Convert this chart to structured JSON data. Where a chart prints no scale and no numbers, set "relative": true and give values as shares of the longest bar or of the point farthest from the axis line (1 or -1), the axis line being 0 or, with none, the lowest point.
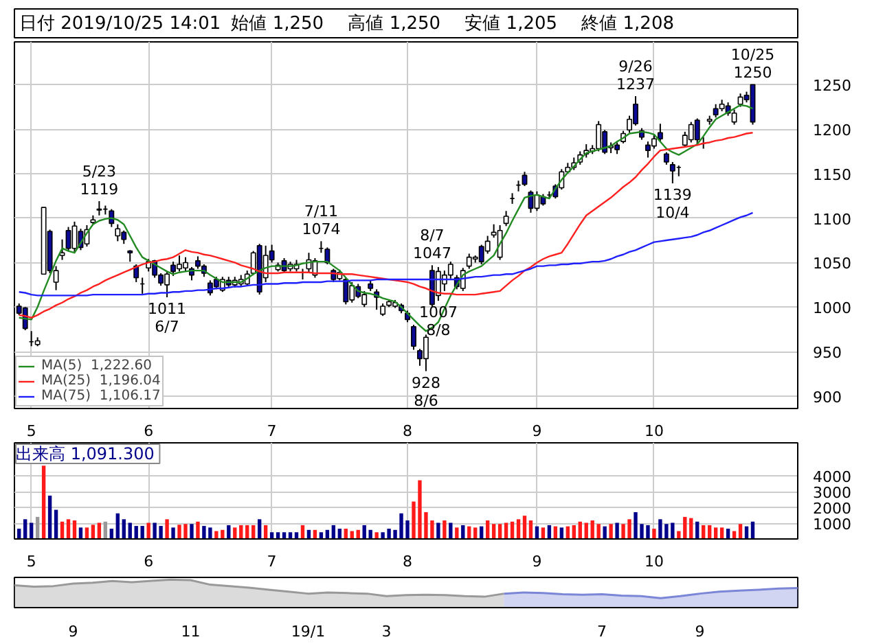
{
  "chart_data": [
    {
      "type": "candlestick",
      "annotations": [
        "日付 2019/10/25 14:01",
        "始値 1,250",
        "高値 1,250",
        "安値 1,205",
        "終値 1,208",
        {
          "text": "5/23\n1119",
          "y": 1119
        },
        {
          "text": "1011\n6/7",
          "y": 1011
        },
        {
          "text": "7/11\n1074",
          "y": 1074
        },
        {
          "text": "8/7\n1047",
          "y": 1047
        },
        {
          "text": "1007\n8/8",
          "y": 1007
        },
        {
          "text": "928\n8/6",
          "y": 928
        },
        {
          "text": "9/26\n1237",
          "y": 1237
        },
        {
          "text": "1139\n10/4",
          "y": 1139
        },
        {
          "text": "10/25\n1250",
          "y": 1250
        }
      ],
      "categories": [
        null,
        null,
        "5",
        null,
        null,
        null,
        null,
        null,
        null,
        null,
        null,
        null,
        null,
        null,
        null,
        null,
        null,
        null,
        null,
        null,
        null,
        "6",
        null,
        null,
        null,
        null,
        null,
        null,
        null,
        null,
        null,
        null,
        null,
        null,
        null,
        null,
        null,
        null,
        null,
        null,
        null,
        "7",
        null,
        null,
        null,
        null,
        null,
        null,
        null,
        null,
        null,
        null,
        null,
        null,
        null,
        null,
        null,
        null,
        null,
        null,
        null,
        null,
        null,
        "8",
        null,
        null,
        null,
        null,
        null,
        null,
        null,
        null,
        null,
        null,
        null,
        null,
        null,
        null,
        null,
        null,
        null,
        null,
        null,
        null,
        "9",
        null,
        null,
        null,
        null,
        null,
        null,
        null,
        null,
        null,
        null,
        null,
        null,
        null,
        null,
        null,
        null,
        null,
        null,
        "10",
        null,
        null,
        null,
        null,
        null,
        null,
        null,
        null,
        null,
        null,
        null,
        null,
        null,
        null,
        null,
        null
      ],
      "ohlc": [
        [
          1001,
          1004,
          991,
          993
        ],
        [
          999,
          1000,
          974,
          976
        ],
        [
          961,
          973,
          956,
          961
        ],
        [
          958,
          966,
          956,
          962
        ],
        [
          1037,
          1112,
          1037,
          1112
        ],
        [
          1085,
          1087,
          1038,
          1041
        ],
        [
          1028,
          1046,
          1019,
          1041
        ],
        [
          1058,
          1076,
          1053,
          1061
        ],
        [
          1086,
          1090,
          1063,
          1066
        ],
        [
          1066,
          1096,
          1061,
          1091
        ],
        [
          1085,
          1088,
          1064,
          1067
        ],
        [
          1071,
          1092,
          1068,
          1087
        ],
        [
          1095,
          1103,
          1093,
          1098
        ],
        [
          1109,
          1119,
          1103,
          1110
        ],
        [
          1110,
          1114,
          1104,
          1110
        ],
        [
          1108,
          1110,
          1090,
          1094
        ],
        [
          1080,
          1093,
          1074,
          1088
        ],
        [
          1084,
          1086,
          1071,
          1076
        ],
        [
          1063,
          1064,
          1051,
          1061
        ],
        [
          1046,
          1048,
          1028,
          1033
        ],
        [
          1026,
          1033,
          1015,
          1026
        ],
        [
          1044,
          1054,
          1040,
          1051
        ],
        [
          1052,
          1053,
          1033,
          1036
        ],
        [
          1036,
          1038,
          1024,
          1027
        ],
        [
          1025,
          1040,
          1011,
          1037
        ],
        [
          1047,
          1051,
          1035,
          1040
        ],
        [
          1043,
          1058,
          1040,
          1048
        ],
        [
          1044,
          1056,
          1040,
          1050
        ],
        [
          1043,
          1045,
          1030,
          1036
        ],
        [
          1052,
          1057,
          1043,
          1046
        ],
        [
          1046,
          1048,
          1034,
          1038
        ],
        [
          1027,
          1030,
          1013,
          1016
        ],
        [
          1031,
          1034,
          1020,
          1023
        ],
        [
          1019,
          1034,
          1017,
          1031
        ],
        [
          1030,
          1034,
          1022,
          1025
        ],
        [
          1025,
          1034,
          1022,
          1030
        ],
        [
          1026,
          1036,
          1023,
          1031
        ],
        [
          1026,
          1041,
          1024,
          1037
        ],
        [
          1038,
          1063,
          1036,
          1061
        ],
        [
          1069,
          1071,
          1014,
          1017
        ],
        [
          1033,
          1069,
          1028,
          1058
        ],
        [
          1063,
          1070,
          1050,
          1053
        ],
        [
          1042,
          1050,
          1040,
          1047
        ],
        [
          1052,
          1055,
          1038,
          1041
        ],
        [
          1043,
          1051,
          1040,
          1048
        ],
        [
          1043,
          1053,
          1040,
          1048
        ],
        [
          1039,
          1043,
          1031,
          1039
        ],
        [
          1043,
          1061,
          1039,
          1053
        ],
        [
          1036,
          1055,
          1033,
          1052
        ],
        [
          1066,
          1074,
          1061,
          1066
        ],
        [
          1065,
          1067,
          1048,
          1050
        ],
        [
          1041,
          1043,
          1028,
          1031
        ],
        [
          1032,
          1042,
          1030,
          1039
        ],
        [
          1031,
          1033,
          1003,
          1006
        ],
        [
          1008,
          1028,
          1005,
          1024
        ],
        [
          1023,
          1026,
          1010,
          1012
        ],
        [
          1003,
          1018,
          1000,
          1014
        ],
        [
          1026,
          1030,
          1018,
          1021
        ],
        [
          1017,
          1020,
          997,
          1011
        ],
        [
          992,
          1004,
          990,
          1001
        ],
        [
          1002,
          1008,
          1000,
          1006
        ],
        [
          1001,
          1008,
          999,
          1005
        ],
        [
          1002,
          1004,
          993,
          996
        ],
        [
          993,
          996,
          983,
          986
        ],
        [
          978,
          980,
          952,
          956
        ],
        [
          951,
          953,
          934,
          942
        ],
        [
          942,
          969,
          928,
          966
        ],
        [
          1041,
          1047,
          1000,
          1003
        ],
        [
          1013,
          1045,
          1007,
          1040
        ],
        [
          1026,
          1041,
          1018,
          1036
        ],
        [
          1036,
          1051,
          1032,
          1048
        ],
        [
          1033,
          1036,
          1020,
          1023
        ],
        [
          1021,
          1044,
          1018,
          1041
        ],
        [
          1046,
          1060,
          1043,
          1056
        ],
        [
          1054,
          1058,
          1050,
          1056
        ],
        [
          1068,
          1070,
          1048,
          1051
        ],
        [
          1063,
          1080,
          1060,
          1074
        ],
        [
          1081,
          1093,
          1078,
          1084
        ],
        [
          1056,
          1092,
          1053,
          1086
        ],
        [
          1094,
          1108,
          1091,
          1102
        ],
        [
          1122,
          1128,
          1116,
          1122
        ],
        [
          1137,
          1142,
          1130,
          1137
        ],
        [
          1148,
          1152,
          1136,
          1138
        ],
        [
          1129,
          1131,
          1106,
          1111
        ],
        [
          1111,
          1130,
          1108,
          1126
        ],
        [
          1124,
          1127,
          1114,
          1116
        ],
        [
          1126,
          1130,
          1122,
          1126
        ],
        [
          1136,
          1138,
          1122,
          1124
        ],
        [
          1134,
          1155,
          1132,
          1152
        ],
        [
          1152,
          1162,
          1150,
          1157
        ],
        [
          1157,
          1168,
          1154,
          1162
        ],
        [
          1163,
          1175,
          1160,
          1171
        ],
        [
          1172,
          1183,
          1168,
          1176
        ],
        [
          1175,
          1182,
          1172,
          1178
        ],
        [
          1178,
          1209,
          1175,
          1205
        ],
        [
          1197,
          1199,
          1172,
          1174
        ],
        [
          1179,
          1185,
          1173,
          1181
        ],
        [
          1182,
          1185,
          1172,
          1177
        ],
        [
          1186,
          1198,
          1184,
          1195
        ],
        [
          1199,
          1215,
          1196,
          1211
        ],
        [
          1228,
          1237,
          1204,
          1206
        ],
        [
          1198,
          1201,
          1188,
          1191
        ],
        [
          1182,
          1186,
          1168,
          1176
        ],
        [
          1181,
          1193,
          1178,
          1189
        ],
        [
          1196,
          1206,
          1186,
          1189
        ],
        [
          1172,
          1174,
          1160,
          1163
        ],
        [
          1160,
          1163,
          1139,
          1153
        ],
        [
          1157,
          1159,
          1147,
          1157
        ],
        [
          1182,
          1197,
          1180,
          1193
        ],
        [
          1188,
          1208,
          1185,
          1205
        ],
        [
          1210,
          1212,
          1183,
          1188
        ],
        [
          1184,
          1191,
          1178,
          1184
        ],
        [
          1209,
          1215,
          1205,
          1211
        ],
        [
          1223,
          1228,
          1213,
          1216
        ],
        [
          1223,
          1233,
          1220,
          1228
        ],
        [
          1226,
          1230,
          1215,
          1218
        ],
        [
          1208,
          1222,
          1205,
          1218
        ],
        [
          1228,
          1240,
          1225,
          1236
        ],
        [
          1238,
          1242,
          1230,
          1233
        ],
        [
          1250,
          1250,
          1205,
          1208
        ]
      ],
      "colors": [
        "#0a0a96",
        "#0a0a96",
        "#000000",
        "#ffffff",
        "#ffffff",
        "#0a0a96",
        "#ffffff",
        "#ffffff",
        "#0a0a96",
        "#ffffff",
        "#0a0a96",
        "#ffffff",
        "#ffffff",
        "#ffffff",
        "#000000",
        "#0a0a96",
        "#ffffff",
        "#0a0a96",
        "#0a0a96",
        "#0a0a96",
        "#000000",
        "#ffffff",
        "#0a0a96",
        "#0a0a96",
        "#ffffff",
        "#0a0a96",
        "#ffffff",
        "#ffffff",
        "#0a0a96",
        "#0a0a96",
        "#0a0a96",
        "#0a0a96",
        "#0a0a96",
        "#ffffff",
        "#0a0a96",
        "#ffffff",
        "#ffffff",
        "#ffffff",
        "#ffffff",
        "#0a0a96",
        "#ffffff",
        "#0a0a96",
        "#ffffff",
        "#0a0a96",
        "#ffffff",
        "#ffffff",
        "#000000",
        "#ffffff",
        "#ffffff",
        "#000000",
        "#0a0a96",
        "#0a0a96",
        "#ffffff",
        "#0a0a96",
        "#ffffff",
        "#0a0a96",
        "#ffffff",
        "#0a0a96",
        "#0a0a96",
        "#ffffff",
        "#ffffff",
        "#ffffff",
        "#0a0a96",
        "#0a0a96",
        "#0a0a96",
        "#0a0a96",
        "#ffffff",
        "#0a0a96",
        "#ffffff",
        "#ffffff",
        "#ffffff",
        "#0a0a96",
        "#ffffff",
        "#ffffff",
        "#ffffff",
        "#0a0a96",
        "#ffffff",
        "#ffffff",
        "#ffffff",
        "#ffffff",
        "#000000",
        "#000000",
        "#0a0a96",
        "#0a0a96",
        "#ffffff",
        "#0a0a96",
        "#000000",
        "#0a0a96",
        "#ffffff",
        "#ffffff",
        "#ffffff",
        "#ffffff",
        "#ffffff",
        "#ffffff",
        "#ffffff",
        "#0a0a96",
        "#ffffff",
        "#0a0a96",
        "#ffffff",
        "#ffffff",
        "#0a0a96",
        "#0a0a96",
        "#0a0a96",
        "#ffffff",
        "#0a0a96",
        "#0a0a96",
        "#0a0a96",
        "#000000",
        "#ffffff",
        "#ffffff",
        "#0a0a96",
        "#000000",
        "#ffffff",
        "#0a0a96",
        "#ffffff",
        "#0a0a96",
        "#ffffff",
        "#ffffff",
        "#0a0a96",
        "#0a0a96"
      ],
      "series": [
        {
          "type": "line",
          "name": "MA(5)  1,222.60",
          "color": "#228b22",
          "values": [
            988,
            987,
            986,
            1000,
            1018,
            1035,
            1052,
            1066,
            1063,
            1061,
            1072,
            1083,
            1093,
            1097,
            1099,
            1100,
            1098,
            1093,
            1080,
            1067,
            1056,
            1052,
            1048,
            1044,
            1040,
            1037,
            1039,
            1040,
            1041,
            1041,
            1041,
            1036,
            1032,
            1028,
            1028,
            1028,
            1028,
            1032,
            1037,
            1041,
            1044,
            1046,
            1046,
            1046,
            1046,
            1047,
            1049,
            1050,
            1051,
            1051,
            1051,
            1046,
            1041,
            1033,
            1025,
            1018,
            1016,
            1015,
            1013,
            1010,
            1008,
            1006,
            1000,
            993,
            986,
            979,
            973,
            977,
            983,
            998,
            1013,
            1025,
            1036,
            1040,
            1043,
            1046,
            1052,
            1058,
            1071,
            1083,
            1097,
            1110,
            1123,
            1125,
            1126,
            1124,
            1122,
            1133,
            1143,
            1151,
            1158,
            1166,
            1173,
            1175,
            1177,
            1179,
            1181,
            1186,
            1190,
            1195,
            1196,
            1197,
            1196,
            1194,
            1186,
            1178,
            1174,
            1171,
            1175,
            1179,
            1183,
            1192,
            1202,
            1211,
            1215,
            1219,
            1223,
            1227,
            1226,
            1223
          ]
        },
        {
          "type": "line",
          "name": "MA(25)  1,196.04",
          "color": "#ff2020",
          "values": [
            991,
            990,
            988,
            991,
            995,
            998,
            1002,
            1005,
            1009,
            1012,
            1016,
            1019,
            1023,
            1026,
            1030,
            1033,
            1036,
            1039,
            1042,
            1045,
            1048,
            1050,
            1051,
            1053,
            1054,
            1056,
            1060,
            1064,
            1062,
            1061,
            1059,
            1058,
            1056,
            1054,
            1052,
            1050,
            1047,
            1045,
            1043,
            1040,
            1038,
            1038,
            1038,
            1039,
            1039,
            1039,
            1039,
            1039,
            1038,
            1038,
            1038,
            1038,
            1037,
            1037,
            1037,
            1036,
            1035,
            1034,
            1033,
            1032,
            1031,
            1030,
            1029,
            1028,
            1026,
            1023,
            1021,
            1018,
            1016,
            1015,
            1015,
            1014,
            1014,
            1014,
            1014,
            1015,
            1016,
            1017,
            1018,
            1024,
            1030,
            1035,
            1041,
            1045,
            1050,
            1054,
            1057,
            1059,
            1061,
            1071,
            1082,
            1093,
            1103,
            1108,
            1113,
            1118,
            1123,
            1129,
            1135,
            1140,
            1146,
            1154,
            1161,
            1169,
            1176,
            1177,
            1178,
            1179,
            1180,
            1181,
            1182,
            1184,
            1185,
            1187,
            1188,
            1190,
            1191,
            1193,
            1195,
            1196
          ]
        },
        {
          "type": "line",
          "name": "MA(75)  1,106.17",
          "color": "#2020ff",
          "values": [
            1017,
            1016,
            1014,
            1013,
            1013,
            1013,
            1013,
            1013,
            1013,
            1013,
            1013,
            1013,
            1014,
            1014,
            1014,
            1014,
            1014,
            1014,
            1014,
            1014,
            1014,
            1015,
            1015,
            1016,
            1016,
            1017,
            1017,
            1018,
            1018,
            1019,
            1019,
            1020,
            1021,
            1021,
            1022,
            1023,
            1023,
            1024,
            1025,
            1025,
            1026,
            1026,
            1026,
            1027,
            1027,
            1027,
            1028,
            1028,
            1028,
            1028,
            1029,
            1029,
            1029,
            1029,
            1030,
            1030,
            1030,
            1030,
            1031,
            1031,
            1031,
            1031,
            1031,
            1031,
            1031,
            1031,
            1031,
            1031,
            1031,
            1031,
            1031,
            1031,
            1032,
            1033,
            1034,
            1034,
            1035,
            1036,
            1036,
            1037,
            1037,
            1039,
            1041,
            1043,
            1046,
            1046,
            1047,
            1047,
            1048,
            1048,
            1049,
            1049,
            1050,
            1051,
            1051,
            1052,
            1054,
            1057,
            1059,
            1062,
            1064,
            1067,
            1070,
            1073,
            1074,
            1075,
            1076,
            1077,
            1078,
            1079,
            1081,
            1084,
            1086,
            1089,
            1092,
            1095,
            1098,
            1101,
            1103,
            1106
          ]
        }
      ],
      "ylim": [
        886,
        1298
      ],
      "yticks": [
        900,
        950,
        1000,
        1050,
        1100,
        1150,
        1200,
        1250
      ],
      "grid": true,
      "legend": "bottom left"
    },
    {
      "type": "bar",
      "title": "出来高  1,091.300",
      "categories": [
        null,
        null,
        "5",
        null,
        null,
        null,
        null,
        null,
        null,
        null,
        null,
        null,
        null,
        null,
        null,
        null,
        null,
        null,
        null,
        null,
        null,
        "6",
        null,
        null,
        null,
        null,
        null,
        null,
        null,
        null,
        null,
        null,
        null,
        null,
        null,
        null,
        null,
        null,
        null,
        null,
        null,
        "7",
        null,
        null,
        null,
        null,
        null,
        null,
        null,
        null,
        null,
        null,
        null,
        null,
        null,
        null,
        null,
        null,
        null,
        null,
        null,
        null,
        null,
        "8",
        null,
        null,
        null,
        null,
        null,
        null,
        null,
        null,
        null,
        null,
        null,
        null,
        null,
        null,
        null,
        null,
        null,
        null,
        null,
        null,
        "9",
        null,
        null,
        null,
        null,
        null,
        null,
        null,
        null,
        null,
        null,
        null,
        null,
        null,
        null,
        null,
        null,
        null,
        null,
        "10",
        null,
        null,
        null,
        null,
        null,
        null,
        null,
        null,
        null,
        null,
        null,
        null,
        null,
        null,
        null,
        null
      ],
      "values": [
        650,
        1250,
        1025,
        1400,
        4650,
        2750,
        1850,
        1100,
        1250,
        1175,
        725,
        725,
        900,
        1025,
        1100,
        650,
        1625,
        1250,
        1025,
        825,
        825,
        1025,
        1025,
        825,
        1250,
        725,
        900,
        950,
        950,
        1100,
        825,
        725,
        500,
        575,
        875,
        725,
        875,
        875,
        875,
        1250,
        875,
        425,
        425,
        425,
        425,
        425,
        875,
        575,
        575,
        425,
        575,
        875,
        650,
        650,
        500,
        575,
        875,
        575,
        425,
        425,
        650,
        575,
        1625,
        1175,
        2375,
        3725,
        1700,
        1175,
        1025,
        1175,
        1025,
        725,
        875,
        800,
        725,
        800,
        1175,
        950,
        950,
        1025,
        1100,
        1250,
        1475,
        1175,
        800,
        725,
        875,
        800,
        725,
        800,
        875,
        1100,
        1025,
        1175,
        950,
        800,
        950,
        1025,
        950,
        1250,
        1700,
        950,
        875,
        650,
        1250,
        950,
        1025,
        500,
        1400,
        1325,
        1100,
        875,
        875,
        725,
        725,
        650,
        500,
        950,
        800,
        1100
      ],
      "colors": [
        "#00008b",
        "#00008b",
        "#00008b",
        "#999999",
        "#ff1a1a",
        "#00008b",
        "#00008b",
        "#ff1a1a",
        "#ff1a1a",
        "#ff1a1a",
        "#00008b",
        "#ff1a1a",
        "#ff1a1a",
        "#ff1a1a",
        "#999999",
        "#00008b",
        "#00008b",
        "#00008b",
        "#00008b",
        "#00008b",
        "#00008b",
        "#ff1a1a",
        "#00008b",
        "#00008b",
        "#ff1a1a",
        "#00008b",
        "#ff1a1a",
        "#ff1a1a",
        "#00008b",
        "#ff1a1a",
        "#00008b",
        "#00008b",
        "#ff1a1a",
        "#ff1a1a",
        "#00008b",
        "#ff1a1a",
        "#ff1a1a",
        "#ff1a1a",
        "#ff1a1a",
        "#00008b",
        "#ff1a1a",
        "#00008b",
        "#00008b",
        "#00008b",
        "#00008b",
        "#00008b",
        "#ff1a1a",
        "#00008b",
        "#ff1a1a",
        "#00008b",
        "#00008b",
        "#00008b",
        "#00008b",
        "#ff1a1a",
        "#ff1a1a",
        "#ff1a1a",
        "#00008b",
        "#00008b",
        "#ff1a1a",
        "#00008b",
        "#00008b",
        "#00008b",
        "#00008b",
        "#00008b",
        "#ff1a1a",
        "#ff1a1a",
        "#ff1a1a",
        "#ff1a1a",
        "#00008b",
        "#ff1a1a",
        "#00008b",
        "#ff1a1a",
        "#00008b",
        "#ff1a1a",
        "#ff1a1a",
        "#00008b",
        "#ff1a1a",
        "#ff1a1a",
        "#ff1a1a",
        "#ff1a1a",
        "#ff1a1a",
        "#ff1a1a",
        "#ff1a1a",
        "#ff1a1a",
        "#00008b",
        "#ff1a1a",
        "#00008b",
        "#ff1a1a",
        "#00008b",
        "#ff1a1a",
        "#ff1a1a",
        "#ff1a1a",
        "#ff1a1a",
        "#ff1a1a",
        "#ff1a1a",
        "#00008b",
        "#ff1a1a",
        "#00008b",
        "#ff1a1a",
        "#ff1a1a",
        "#00008b",
        "#00008b",
        "#00008b",
        "#ff1a1a",
        "#00008b",
        "#00008b",
        "#00008b",
        "#ff1a1a",
        "#ff1a1a",
        "#ff1a1a",
        "#00008b",
        "#ff1a1a",
        "#ff1a1a",
        "#ff1a1a",
        "#ff1a1a",
        "#00008b",
        "#ff1a1a",
        "#ff1a1a",
        "#00008b",
        "#00008b"
      ],
      "ylim": [
        0,
        6100
      ],
      "yticks": [
        1000,
        2000,
        3000,
        4000
      ],
      "grid": true
    },
    {
      "type": "area",
      "relative": true,
      "tick_labels": "x",
      "categories": [
        null,
        null,
        null,
        "9",
        null,
        null,
        null,
        null,
        null,
        "11",
        null,
        null,
        null,
        null,
        null,
        "19/1",
        null,
        null,
        null,
        "3",
        null,
        null,
        null,
        null,
        null,
        null,
        null,
        null,
        null,
        null,
        "7",
        null,
        null,
        null,
        null,
        "9",
        null,
        null,
        null,
        null,
        null
      ],
      "series": [
        {
          "color": "#999999",
          "values": [
            0.8,
            0.75,
            0.77,
            0.86,
            0.89,
            0.95,
            0.91,
            0.96,
            1.0,
            0.98,
            0.82,
            0.77,
            0.71,
            0.64,
            0.57,
            0.5,
            0.54,
            0.52,
            0.5,
            0.41,
            0.45,
            0.46,
            0.45,
            0.41,
            0.39,
            0.5,
            null,
            null,
            null,
            null,
            null,
            null,
            null,
            null,
            null,
            null,
            null,
            null,
            null,
            null,
            null
          ]
        },
        {
          "color": "#7b86d6",
          "values": [
            null,
            null,
            null,
            null,
            null,
            null,
            null,
            null,
            null,
            null,
            null,
            null,
            null,
            null,
            null,
            null,
            null,
            null,
            null,
            null,
            null,
            null,
            null,
            null,
            null,
            0.5,
            0.54,
            0.52,
            0.48,
            0.46,
            0.48,
            0.43,
            0.41,
            0.34,
            0.41,
            0.5,
            0.57,
            0.61,
            0.64,
            0.68,
            0.7
          ]
        }
      ]
    }
  ]
}
